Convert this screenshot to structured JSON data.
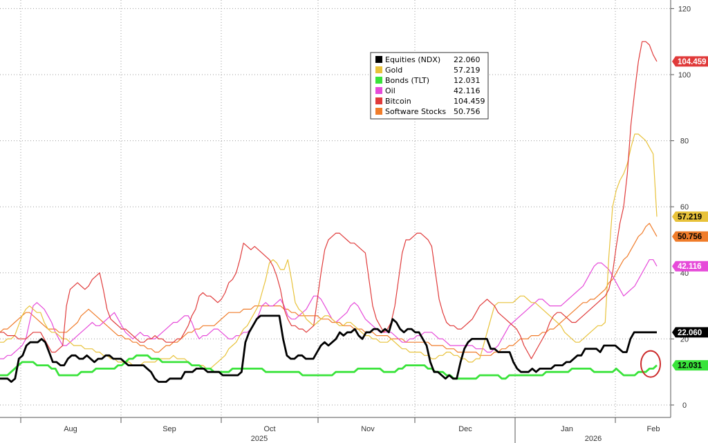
{
  "chart_data": {
    "type": "line",
    "title": "",
    "xlabel": "",
    "ylabel": "",
    "ylim": [
      -5,
      122
    ],
    "grid": true,
    "legend_position": "top-center",
    "x_ticks": {
      "months": [
        "Aug",
        "Sep",
        "Oct",
        "Nov",
        "Dec",
        "Jan",
        "Feb"
      ],
      "years": [
        "2025",
        "2026"
      ]
    },
    "y_ticks": [
      0,
      20,
      40,
      60,
      80,
      100,
      120
    ],
    "series": [
      {
        "name": "Equities (NDX)",
        "last": "22.060",
        "color": "#000000",
        "text_color": "#ffffff",
        "values": [
          8,
          8,
          8,
          7,
          8,
          14,
          15,
          18,
          19,
          19,
          19,
          20,
          19,
          16,
          13,
          13,
          12,
          12,
          14,
          15,
          15,
          14,
          14,
          15,
          14,
          13,
          14,
          14,
          15,
          15,
          14,
          14,
          14,
          13,
          12,
          12,
          12,
          12,
          12,
          11,
          10,
          8,
          7,
          7,
          7,
          8,
          8,
          8,
          8,
          10,
          10,
          10,
          11,
          11,
          11,
          10,
          10,
          10,
          10,
          9,
          9,
          9,
          9,
          9,
          10,
          19,
          22,
          24,
          26,
          27,
          27,
          27,
          27,
          27,
          27,
          20,
          15,
          14,
          14,
          15,
          15,
          14,
          14,
          14,
          16,
          18,
          19,
          18,
          19,
          20,
          22,
          21,
          22,
          22,
          23,
          21,
          20,
          22,
          22,
          23,
          23,
          22,
          23,
          22,
          26,
          25,
          23,
          22,
          23,
          23,
          22,
          22,
          20,
          18,
          13,
          10,
          10,
          9,
          8,
          9,
          8,
          8,
          13,
          17,
          19,
          20,
          20,
          20,
          20,
          20,
          17,
          17,
          16,
          16,
          16,
          16,
          13,
          11,
          10,
          10,
          10,
          11,
          10,
          11,
          11,
          11,
          11,
          12,
          12,
          12,
          13,
          13,
          14,
          15,
          15,
          17,
          17,
          17,
          17,
          16,
          18,
          18,
          18,
          18,
          17,
          16,
          16,
          20,
          22,
          22,
          22,
          22,
          22,
          22,
          22
        ]
      },
      {
        "name": "Gold",
        "last": "57.219",
        "color": "#e8c23a",
        "text_color": "#000000",
        "values": [
          19,
          19,
          20,
          20,
          21,
          24,
          27,
          29,
          30,
          29,
          28,
          28,
          25,
          23,
          22,
          22,
          21,
          20,
          20,
          19,
          18,
          18,
          18,
          17,
          17,
          17,
          16,
          16,
          15,
          15,
          14,
          14,
          13,
          13,
          13,
          13,
          12,
          12,
          12,
          13,
          13,
          13,
          13,
          14,
          14,
          14,
          14,
          15,
          14,
          14,
          14,
          13,
          12,
          12,
          12,
          12,
          11,
          11,
          12,
          13,
          14,
          15,
          17,
          18,
          19,
          21,
          23,
          24,
          26,
          28,
          30,
          34,
          38,
          43,
          44,
          43,
          41,
          41,
          44,
          38,
          31,
          29,
          28,
          26,
          25,
          24,
          25,
          26,
          27,
          27,
          26,
          25,
          24,
          24,
          25,
          25,
          24,
          23,
          22,
          21,
          21,
          20,
          20,
          19,
          19,
          19,
          20,
          19,
          18,
          17,
          17,
          16,
          16,
          16,
          16,
          15,
          15,
          14,
          14,
          15,
          15,
          16,
          16,
          15,
          15,
          14,
          14,
          13,
          13,
          14,
          14,
          18,
          22,
          26,
          30,
          31,
          31,
          31,
          31,
          31,
          32,
          33,
          33,
          32,
          31,
          31,
          30,
          29,
          28,
          27,
          26,
          25,
          24,
          22,
          21,
          20,
          19,
          19,
          20,
          21,
          22,
          23,
          24,
          24,
          25,
          45,
          60,
          65,
          68,
          70,
          73,
          78,
          82,
          82,
          81,
          80,
          78,
          76,
          57
        ]
      },
      {
        "name": "Bonds (TLT)",
        "last": "12.031",
        "color": "#39e33a",
        "text_color": "#000000",
        "values": [
          9,
          9,
          9,
          10,
          11,
          12,
          13,
          13,
          13,
          13,
          12,
          12,
          12,
          12,
          11,
          11,
          9,
          9,
          9,
          9,
          9,
          9,
          10,
          10,
          10,
          10,
          11,
          11,
          11,
          11,
          11,
          11,
          12,
          12,
          13,
          14,
          14,
          15,
          15,
          15,
          15,
          14,
          14,
          14,
          13,
          13,
          13,
          13,
          13,
          13,
          13,
          13,
          12,
          12,
          12,
          11,
          11,
          11,
          10,
          10,
          10,
          10,
          10,
          11,
          11,
          11,
          11,
          11,
          11,
          11,
          11,
          11,
          10,
          10,
          10,
          10,
          10,
          10,
          10,
          10,
          10,
          10,
          9,
          9,
          9,
          9,
          9,
          9,
          9,
          9,
          9,
          10,
          10,
          10,
          10,
          10,
          10,
          11,
          11,
          11,
          11,
          11,
          11,
          11,
          10,
          10,
          10,
          10,
          11,
          11,
          12,
          12,
          12,
          12,
          12,
          12,
          11,
          11,
          10,
          10,
          10,
          9,
          9,
          8,
          8,
          8,
          8,
          8,
          8,
          8,
          9,
          9,
          9,
          9,
          9,
          9,
          8,
          8,
          9,
          9,
          9,
          9,
          9,
          9,
          9,
          9,
          9,
          9,
          10,
          10,
          10,
          10,
          10,
          10,
          10,
          11,
          11,
          11,
          11,
          11,
          11,
          10,
          10,
          10,
          10,
          10,
          10,
          11,
          10,
          9,
          9,
          9,
          9,
          10,
          10,
          10,
          11,
          11,
          12
        ]
      },
      {
        "name": "Oil",
        "last": "42.116",
        "color": "#e64ad9",
        "text_color": "#ffffff",
        "values": [
          14,
          14,
          15,
          15,
          16,
          17,
          18,
          20,
          25,
          30,
          31,
          30,
          29,
          27,
          25,
          22,
          20,
          18,
          18,
          19,
          20,
          21,
          22,
          23,
          24,
          25,
          24,
          24,
          25,
          26,
          27,
          28,
          26,
          24,
          22,
          21,
          20,
          21,
          22,
          21,
          21,
          20,
          20,
          21,
          22,
          23,
          24,
          25,
          25,
          26,
          27,
          27,
          25,
          22,
          20,
          21,
          21,
          22,
          23,
          23,
          22,
          21,
          20,
          20,
          21,
          21,
          22,
          22,
          23,
          25,
          27,
          30,
          31,
          30,
          30,
          31,
          32,
          30,
          27,
          26,
          26,
          27,
          28,
          29,
          31,
          33,
          33,
          32,
          30,
          28,
          26,
          25,
          26,
          27,
          28,
          30,
          31,
          30,
          28,
          26,
          25,
          24,
          23,
          22,
          22,
          22,
          22,
          21,
          20,
          19,
          19,
          20,
          20,
          21,
          21,
          22,
          22,
          22,
          21,
          20,
          20,
          19,
          18,
          18,
          18,
          18,
          18,
          18,
          18,
          17,
          17,
          17,
          16,
          16,
          17,
          18,
          20,
          22,
          24,
          25,
          26,
          27,
          28,
          29,
          30,
          31,
          32,
          32,
          31,
          30,
          30,
          30,
          30,
          31,
          32,
          33,
          34,
          35,
          36,
          38,
          40,
          42,
          43,
          43,
          42,
          41,
          39,
          37,
          35,
          33,
          34,
          35,
          36,
          38,
          40,
          42,
          44,
          44,
          42
        ]
      },
      {
        "name": "Bitcoin",
        "last": "104.459",
        "color": "#e03a3a",
        "text_color": "#ffffff",
        "values": [
          22,
          22,
          21,
          21,
          21,
          20,
          20,
          20,
          21,
          22,
          22,
          22,
          20,
          18,
          16,
          16,
          17,
          18,
          30,
          35,
          36,
          37,
          36,
          35,
          36,
          38,
          39,
          40,
          35,
          29,
          26,
          25,
          24,
          23,
          23,
          22,
          21,
          20,
          19,
          19,
          20,
          20,
          21,
          20,
          20,
          19,
          19,
          19,
          20,
          20,
          22,
          24,
          27,
          29,
          33,
          34,
          33,
          33,
          32,
          31,
          32,
          34,
          37,
          38,
          40,
          44,
          49,
          48,
          47,
          48,
          47,
          46,
          45,
          44,
          42,
          39,
          35,
          29,
          26,
          24,
          24,
          23,
          23,
          22,
          23,
          24,
          32,
          40,
          47,
          50,
          51,
          52,
          52,
          51,
          50,
          49,
          49,
          48,
          47,
          46,
          38,
          30,
          26,
          24,
          22,
          23,
          25,
          30,
          38,
          46,
          50,
          50,
          51,
          52,
          52,
          51,
          50,
          48,
          40,
          32,
          28,
          25,
          24,
          24,
          23,
          23,
          24,
          25,
          26,
          28,
          30,
          31,
          32,
          31,
          30,
          28,
          27,
          26,
          25,
          24,
          23,
          21,
          18,
          16,
          14,
          16,
          18,
          20,
          22,
          25,
          27,
          28,
          28,
          27,
          26,
          25,
          25,
          26,
          27,
          28,
          29,
          30,
          31,
          32,
          33,
          35,
          40,
          48,
          55,
          60,
          70,
          85,
          95,
          104,
          110,
          110,
          109,
          106,
          104
        ]
      },
      {
        "name": "Software Stocks",
        "last": "50.756",
        "color": "#f07c2a",
        "text_color": "#000000",
        "values": [
          22,
          23,
          23,
          24,
          25,
          26,
          27,
          28,
          28,
          27,
          26,
          25,
          24,
          23,
          23,
          23,
          22,
          22,
          22,
          23,
          24,
          25,
          27,
          28,
          29,
          28,
          27,
          26,
          25,
          24,
          23,
          22,
          21,
          21,
          20,
          20,
          19,
          19,
          18,
          18,
          17,
          17,
          16,
          16,
          17,
          18,
          18,
          19,
          19,
          20,
          21,
          22,
          22,
          23,
          23,
          24,
          24,
          24,
          24,
          25,
          26,
          27,
          28,
          28,
          28,
          28,
          29,
          29,
          29,
          30,
          30,
          30,
          30,
          30,
          30,
          30,
          30,
          29,
          29,
          28,
          28,
          27,
          27,
          27,
          27,
          27,
          27,
          26,
          26,
          26,
          25,
          25,
          25,
          24,
          24,
          24,
          23,
          23,
          23,
          22,
          22,
          22,
          21,
          21,
          21,
          21,
          20,
          20,
          20,
          20,
          19,
          19,
          19,
          19,
          19,
          19,
          19,
          18,
          18,
          18,
          18,
          17,
          17,
          17,
          16,
          16,
          16,
          16,
          16,
          16,
          15,
          15,
          15,
          15,
          16,
          16,
          17,
          17,
          18,
          18,
          19,
          20,
          20,
          20,
          21,
          21,
          21,
          22,
          22,
          23,
          23,
          24,
          25,
          26,
          27,
          28,
          29,
          30,
          31,
          31,
          32,
          32,
          33,
          34,
          35,
          37,
          38,
          40,
          42,
          44,
          45,
          47,
          49,
          51,
          52,
          54,
          55,
          53,
          51
        ]
      }
    ]
  },
  "legend": {
    "items": [
      {
        "name": "Equities (NDX)",
        "value": "22.060",
        "color": "#000000"
      },
      {
        "name": "Gold",
        "value": "57.219",
        "color": "#e8c23a"
      },
      {
        "name": "Bonds (TLT)",
        "value": "12.031",
        "color": "#39e33a"
      },
      {
        "name": "Oil",
        "value": "42.116",
        "color": "#e64ad9"
      },
      {
        "name": "Bitcoin",
        "value": "104.459",
        "color": "#e03a3a"
      },
      {
        "name": "Software Stocks",
        "value": "50.756",
        "color": "#f07c2a"
      }
    ]
  },
  "annotation": {
    "shape": "ellipse",
    "color": "#cc2a2a",
    "marks": "Bonds (TLT)"
  }
}
